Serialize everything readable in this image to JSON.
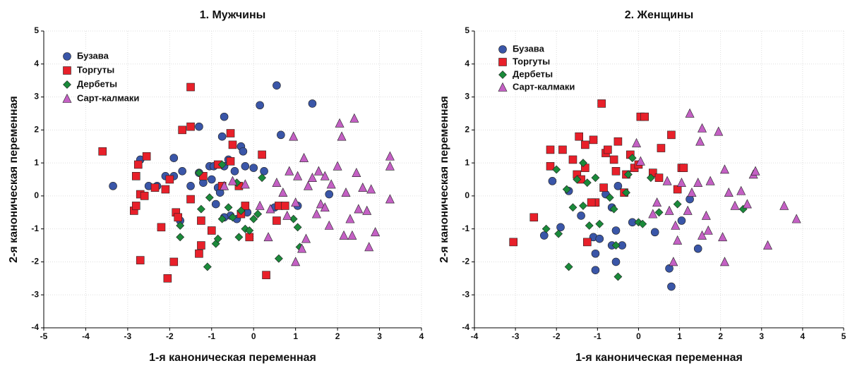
{
  "chart_data": [
    {
      "type": "scatter",
      "title": "1. Мужчины",
      "x_label": "1-я каноническая переменная",
      "y_label": "2-я каноническая переменная",
      "xlim": [
        -5,
        4
      ],
      "ylim": [
        -4,
        5
      ],
      "xticks": [
        -5,
        -4,
        -3,
        -2,
        -1,
        0,
        1,
        2,
        3,
        4
      ],
      "yticks": [
        -4,
        -3,
        -2,
        -1,
        0,
        1,
        2,
        3,
        4,
        5
      ],
      "grid": true,
      "legend": "upper left",
      "series": [
        {
          "name": "Бузава",
          "color": "#3a56a8",
          "marker": "circle",
          "x": [
            -3.35,
            -2.7,
            -2.5,
            -2.3,
            -2.1,
            -1.9,
            -1.9,
            -1.7,
            -1.5,
            -1.3,
            -1.3,
            -1.2,
            -1.05,
            -0.95,
            -1.0,
            -0.85,
            -0.8,
            -0.7,
            -0.75,
            -0.7,
            -0.6,
            -0.45,
            -0.3,
            -0.25,
            -0.2,
            0.0,
            0.15,
            0.25,
            0.55,
            0.65,
            1.4,
            1.8,
            -0.55,
            -0.4,
            -0.15,
            -0.9,
            -0.7,
            1.05,
            0.5,
            -1.75
          ],
          "values": [
            0.3,
            1.1,
            0.3,
            0.3,
            0.6,
            1.15,
            0.6,
            0.75,
            0.3,
            2.1,
            0.7,
            0.4,
            0.9,
            0.9,
            0.5,
            0.25,
            0.1,
            2.4,
            1.8,
            0.9,
            1.1,
            0.75,
            1.5,
            1.35,
            0.9,
            0.85,
            2.75,
            0.75,
            3.35,
            1.85,
            2.8,
            0.05,
            -0.6,
            -0.7,
            -0.5,
            -0.25,
            -0.65,
            -0.3,
            -0.35,
            -0.75
          ]
        },
        {
          "name": "Торгуты",
          "color": "#e8202a",
          "marker": "square",
          "x": [
            -3.6,
            -2.85,
            -2.8,
            -2.8,
            -2.75,
            -2.7,
            -2.7,
            -2.55,
            -2.6,
            -2.35,
            -2.2,
            -2.1,
            -2.05,
            -2.0,
            -1.9,
            -1.85,
            -1.8,
            -1.7,
            -1.5,
            -1.5,
            -1.5,
            -1.3,
            -1.25,
            -1.25,
            -1.2,
            -1.0,
            -0.85,
            -0.75,
            -0.55,
            -0.5,
            -0.55,
            -0.35,
            -0.2,
            -0.1,
            0.2,
            0.3,
            0.6,
            0.55,
            0.75,
            -0.3
          ],
          "values": [
            1.35,
            -0.45,
            -0.3,
            0.6,
            0.95,
            0.05,
            -1.95,
            1.2,
            0.0,
            0.25,
            -0.95,
            0.2,
            -2.5,
            0.5,
            -2.0,
            -0.5,
            -0.65,
            2.0,
            2.1,
            -0.1,
            3.3,
            -1.75,
            -1.5,
            -0.75,
            0.6,
            -1.05,
            0.95,
            0.3,
            1.9,
            1.55,
            1.05,
            0.3,
            -0.3,
            -1.25,
            1.25,
            -2.4,
            -0.3,
            -0.75,
            -0.3,
            -0.55
          ]
        },
        {
          "name": "Дербеты",
          "color": "#1a8a3a",
          "marker": "diamond",
          "x": [
            -1.3,
            -1.25,
            -1.1,
            -1.05,
            -0.9,
            -0.85,
            -0.75,
            -0.6,
            -0.5,
            -0.4,
            -0.35,
            -0.3,
            -0.2,
            -0.1,
            0.0,
            0.1,
            0.2,
            0.6,
            0.95,
            1.05,
            1.1,
            -1.75,
            -1.75,
            -0.75
          ],
          "values": [
            0.7,
            -0.4,
            -2.15,
            -0.05,
            -1.45,
            -1.3,
            0.95,
            -0.35,
            -0.65,
            0.4,
            -1.25,
            -0.45,
            -1.0,
            -1.05,
            -0.7,
            -0.55,
            0.55,
            -1.9,
            -0.7,
            -0.95,
            -1.55,
            -0.9,
            -1.25,
            -0.7
          ]
        },
        {
          "name": "Сарт-калмаки",
          "color": "#c460c4",
          "marker": "triangle",
          "x": [
            0.15,
            0.4,
            0.55,
            0.7,
            0.8,
            0.85,
            0.95,
            1.0,
            1.05,
            1.2,
            1.25,
            1.3,
            1.4,
            1.5,
            1.55,
            1.6,
            1.7,
            1.8,
            1.85,
            2.0,
            2.05,
            2.1,
            2.15,
            2.2,
            2.3,
            2.4,
            2.45,
            2.5,
            2.6,
            2.7,
            2.75,
            2.8,
            3.25,
            3.25,
            3.25,
            2.9,
            1.0,
            1.15,
            -0.7,
            -0.5,
            -0.2,
            0.35,
            1.7,
            2.35
          ],
          "values": [
            -0.3,
            -0.4,
            0.4,
            0.1,
            -0.6,
            0.75,
            1.8,
            -0.2,
            0.6,
            1.15,
            -1.3,
            0.3,
            0.55,
            -0.55,
            0.75,
            -0.25,
            0.6,
            -0.9,
            0.35,
            0.9,
            2.2,
            1.8,
            -1.2,
            0.1,
            -0.7,
            2.35,
            0.7,
            -0.4,
            0.25,
            -0.45,
            -1.55,
            0.2,
            1.2,
            0.9,
            -0.1,
            -1.1,
            -2.0,
            -1.6,
            0.3,
            0.45,
            0.35,
            -1.25,
            -0.35,
            -1.2
          ]
        }
      ]
    },
    {
      "type": "scatter",
      "title": "2. Женщины",
      "x_label": "1-я каноническая переменная",
      "y_label": "2-я каноническая переменная",
      "xlim": [
        -4,
        5
      ],
      "ylim": [
        -4,
        5
      ],
      "xticks": [
        -4,
        -3,
        -2,
        -1,
        0,
        1,
        2,
        3,
        4,
        5
      ],
      "yticks": [
        -4,
        -3,
        -2,
        -1,
        0,
        1,
        2,
        3,
        4,
        5
      ],
      "grid": true,
      "legend": "upper left",
      "series": [
        {
          "name": "Бузава",
          "color": "#3a56a8",
          "marker": "circle",
          "x": [
            -2.3,
            -2.1,
            -1.9,
            -1.7,
            -1.4,
            -1.1,
            -1.05,
            -1.05,
            -0.95,
            -0.8,
            -0.65,
            -0.55,
            -0.55,
            -0.65,
            -0.4,
            -0.15,
            0.4,
            0.75,
            0.8,
            1.05,
            1.45,
            1.25,
            -0.5
          ],
          "values": [
            -1.2,
            0.45,
            -0.95,
            0.15,
            -0.6,
            -1.25,
            -1.75,
            -2.25,
            -1.3,
            0.05,
            -0.35,
            -2.0,
            -1.05,
            -1.5,
            -1.5,
            -0.8,
            -1.1,
            -2.2,
            -2.75,
            -0.75,
            -1.6,
            -0.1,
            0.3
          ]
        },
        {
          "name": "Торгуты",
          "color": "#e8202a",
          "marker": "square",
          "x": [
            -3.05,
            -2.55,
            -2.15,
            -2.15,
            -1.85,
            -1.6,
            -1.5,
            -1.45,
            -1.4,
            -1.3,
            -1.3,
            -1.1,
            -1.05,
            -0.9,
            -0.85,
            -0.8,
            -0.75,
            -0.6,
            -0.55,
            -0.5,
            -0.35,
            -0.3,
            -0.2,
            -0.1,
            0.0,
            0.05,
            0.15,
            0.35,
            0.5,
            0.55,
            0.8,
            0.95,
            1.05,
            1.1,
            -1.25,
            -1.15
          ],
          "values": [
            -1.4,
            -0.65,
            1.4,
            0.9,
            1.4,
            1.1,
            0.65,
            1.8,
            0.5,
            1.55,
            0.85,
            1.7,
            -0.2,
            2.8,
            0.25,
            1.3,
            1.4,
            1.1,
            0.75,
            1.65,
            0.1,
            0.65,
            1.25,
            0.85,
            0.95,
            2.4,
            2.4,
            0.7,
            0.55,
            1.45,
            1.85,
            0.2,
            0.85,
            0.85,
            -1.4,
            -0.2
          ]
        },
        {
          "name": "Дербеты",
          "color": "#1a8a3a",
          "marker": "diamond",
          "x": [
            -2.25,
            -2.0,
            -1.95,
            -1.75,
            -1.7,
            -1.6,
            -1.5,
            -1.35,
            -1.25,
            -1.2,
            -1.05,
            -0.7,
            -0.6,
            -0.55,
            -0.5,
            -0.3,
            -0.25,
            -0.15,
            0.0,
            0.1,
            0.3,
            0.5,
            0.95,
            2.55,
            -1.35,
            -0.95
          ],
          "values": [
            -1.0,
            0.8,
            -1.15,
            0.2,
            -2.15,
            -0.35,
            0.5,
            -0.3,
            0.4,
            -0.9,
            0.55,
            -0.05,
            -0.4,
            -1.5,
            -2.45,
            0.1,
            0.65,
            1.15,
            -0.8,
            -0.85,
            0.55,
            -0.5,
            -0.25,
            -0.4,
            1.0,
            -0.85
          ]
        },
        {
          "name": "Сарт-калмаки",
          "color": "#c460c4",
          "marker": "triangle",
          "x": [
            -0.05,
            0.05,
            0.35,
            0.45,
            0.7,
            0.75,
            0.85,
            0.95,
            1.05,
            1.2,
            1.25,
            1.3,
            1.45,
            1.5,
            1.55,
            1.65,
            1.7,
            1.75,
            1.95,
            2.05,
            2.1,
            2.1,
            2.2,
            2.35,
            2.5,
            2.65,
            2.8,
            2.85,
            3.15,
            3.55,
            3.85,
            0.9,
            1.55
          ],
          "values": [
            1.6,
            1.05,
            -0.55,
            -0.2,
            0.45,
            -0.45,
            -2.0,
            -1.35,
            0.4,
            -0.45,
            2.5,
            0.1,
            0.4,
            1.65,
            2.05,
            -0.6,
            -1.05,
            0.45,
            1.95,
            -1.25,
            0.8,
            -2.0,
            0.1,
            -0.3,
            0.15,
            -0.25,
            0.65,
            0.75,
            -1.5,
            -0.3,
            -0.7,
            -0.9,
            -1.2
          ]
        }
      ]
    }
  ]
}
